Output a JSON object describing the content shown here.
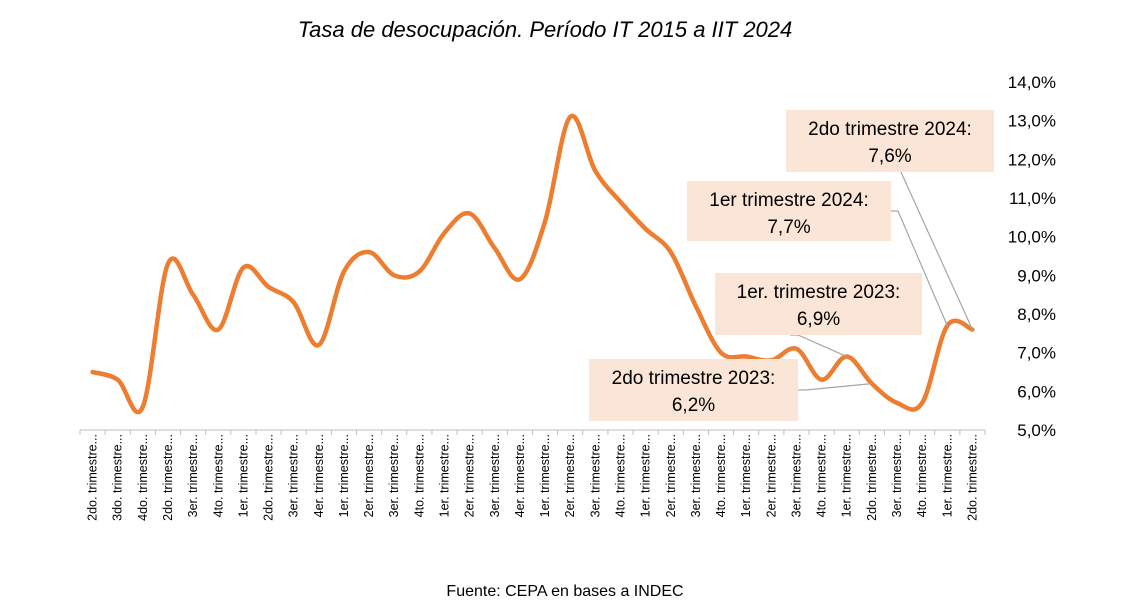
{
  "chart_data": {
    "type": "line",
    "title": "Tasa de desocupación. Período IT 2015 a IIT 2024",
    "source": "Fuente: CEPA en bases a INDEC",
    "ylim": [
      5.0,
      14.0
    ],
    "yticks": [
      "5,0%",
      "6,0%",
      "7,0%",
      "8,0%",
      "9,0%",
      "10,0%",
      "11,0%",
      "12,0%",
      "13,0%",
      "14,0%"
    ],
    "categories": [
      "2do. trimestre...",
      "3do. trimestre...",
      "4do. trimestre...",
      "2do. trimestre...",
      "3er. trimestre...",
      "4to. trimestre...",
      "1er. trimestre...",
      "2do. trimestre...",
      "3er. trimestre...",
      "4er. trimestre...",
      "1er. trimestre...",
      "2er. trimestre...",
      "3er. trimestre...",
      "4to. trimestre...",
      "1er. trimestre...",
      "2er. trimestre...",
      "3er. trimestre...",
      "4er. trimestre...",
      "1er. trimestre...",
      "2er. trimestre...",
      "3er. trimestre...",
      "4to. trimestre...",
      "1er. trimestre...",
      "2er. trimestre...",
      "3er. trimestre...",
      "4to. trimestre...",
      "1er. trimestre...",
      "2er. trimestre...",
      "3er. trimestre...",
      "4to. trimestre...",
      "1er. trimestre...",
      "2do. trimestre...",
      "3er. trimestre...",
      "4to. trimestre...",
      "1er. trimestre...",
      "2do. trimestre..."
    ],
    "series": [
      {
        "name": "Tasa de desocupación",
        "color": "#ed7d31",
        "values": [
          6.5,
          6.3,
          5.6,
          9.3,
          8.5,
          7.6,
          9.2,
          8.7,
          8.3,
          7.2,
          9.1,
          9.6,
          9.0,
          9.1,
          10.1,
          10.6,
          9.7,
          8.9,
          10.4,
          13.1,
          11.7,
          10.9,
          10.2,
          9.6,
          8.2,
          7.0,
          6.9,
          6.8,
          7.1,
          6.3,
          6.9,
          6.2,
          5.7,
          5.7,
          7.7,
          7.6
        ]
      }
    ],
    "annotations": [
      {
        "index": 35,
        "line1": "2do trimestre 2024:",
        "line2": "7,6%"
      },
      {
        "index": 34,
        "line1": "1er trimestre 2024:",
        "line2": "7,7%"
      },
      {
        "index": 30,
        "line1": "1er. trimestre 2023:",
        "line2": "6,9%"
      },
      {
        "index": 31,
        "line1": "2do trimestre 2023:",
        "line2": "6,2%"
      }
    ],
    "annotation_fill": "#fbe5d6",
    "leader_color": "#a6a6a6"
  }
}
